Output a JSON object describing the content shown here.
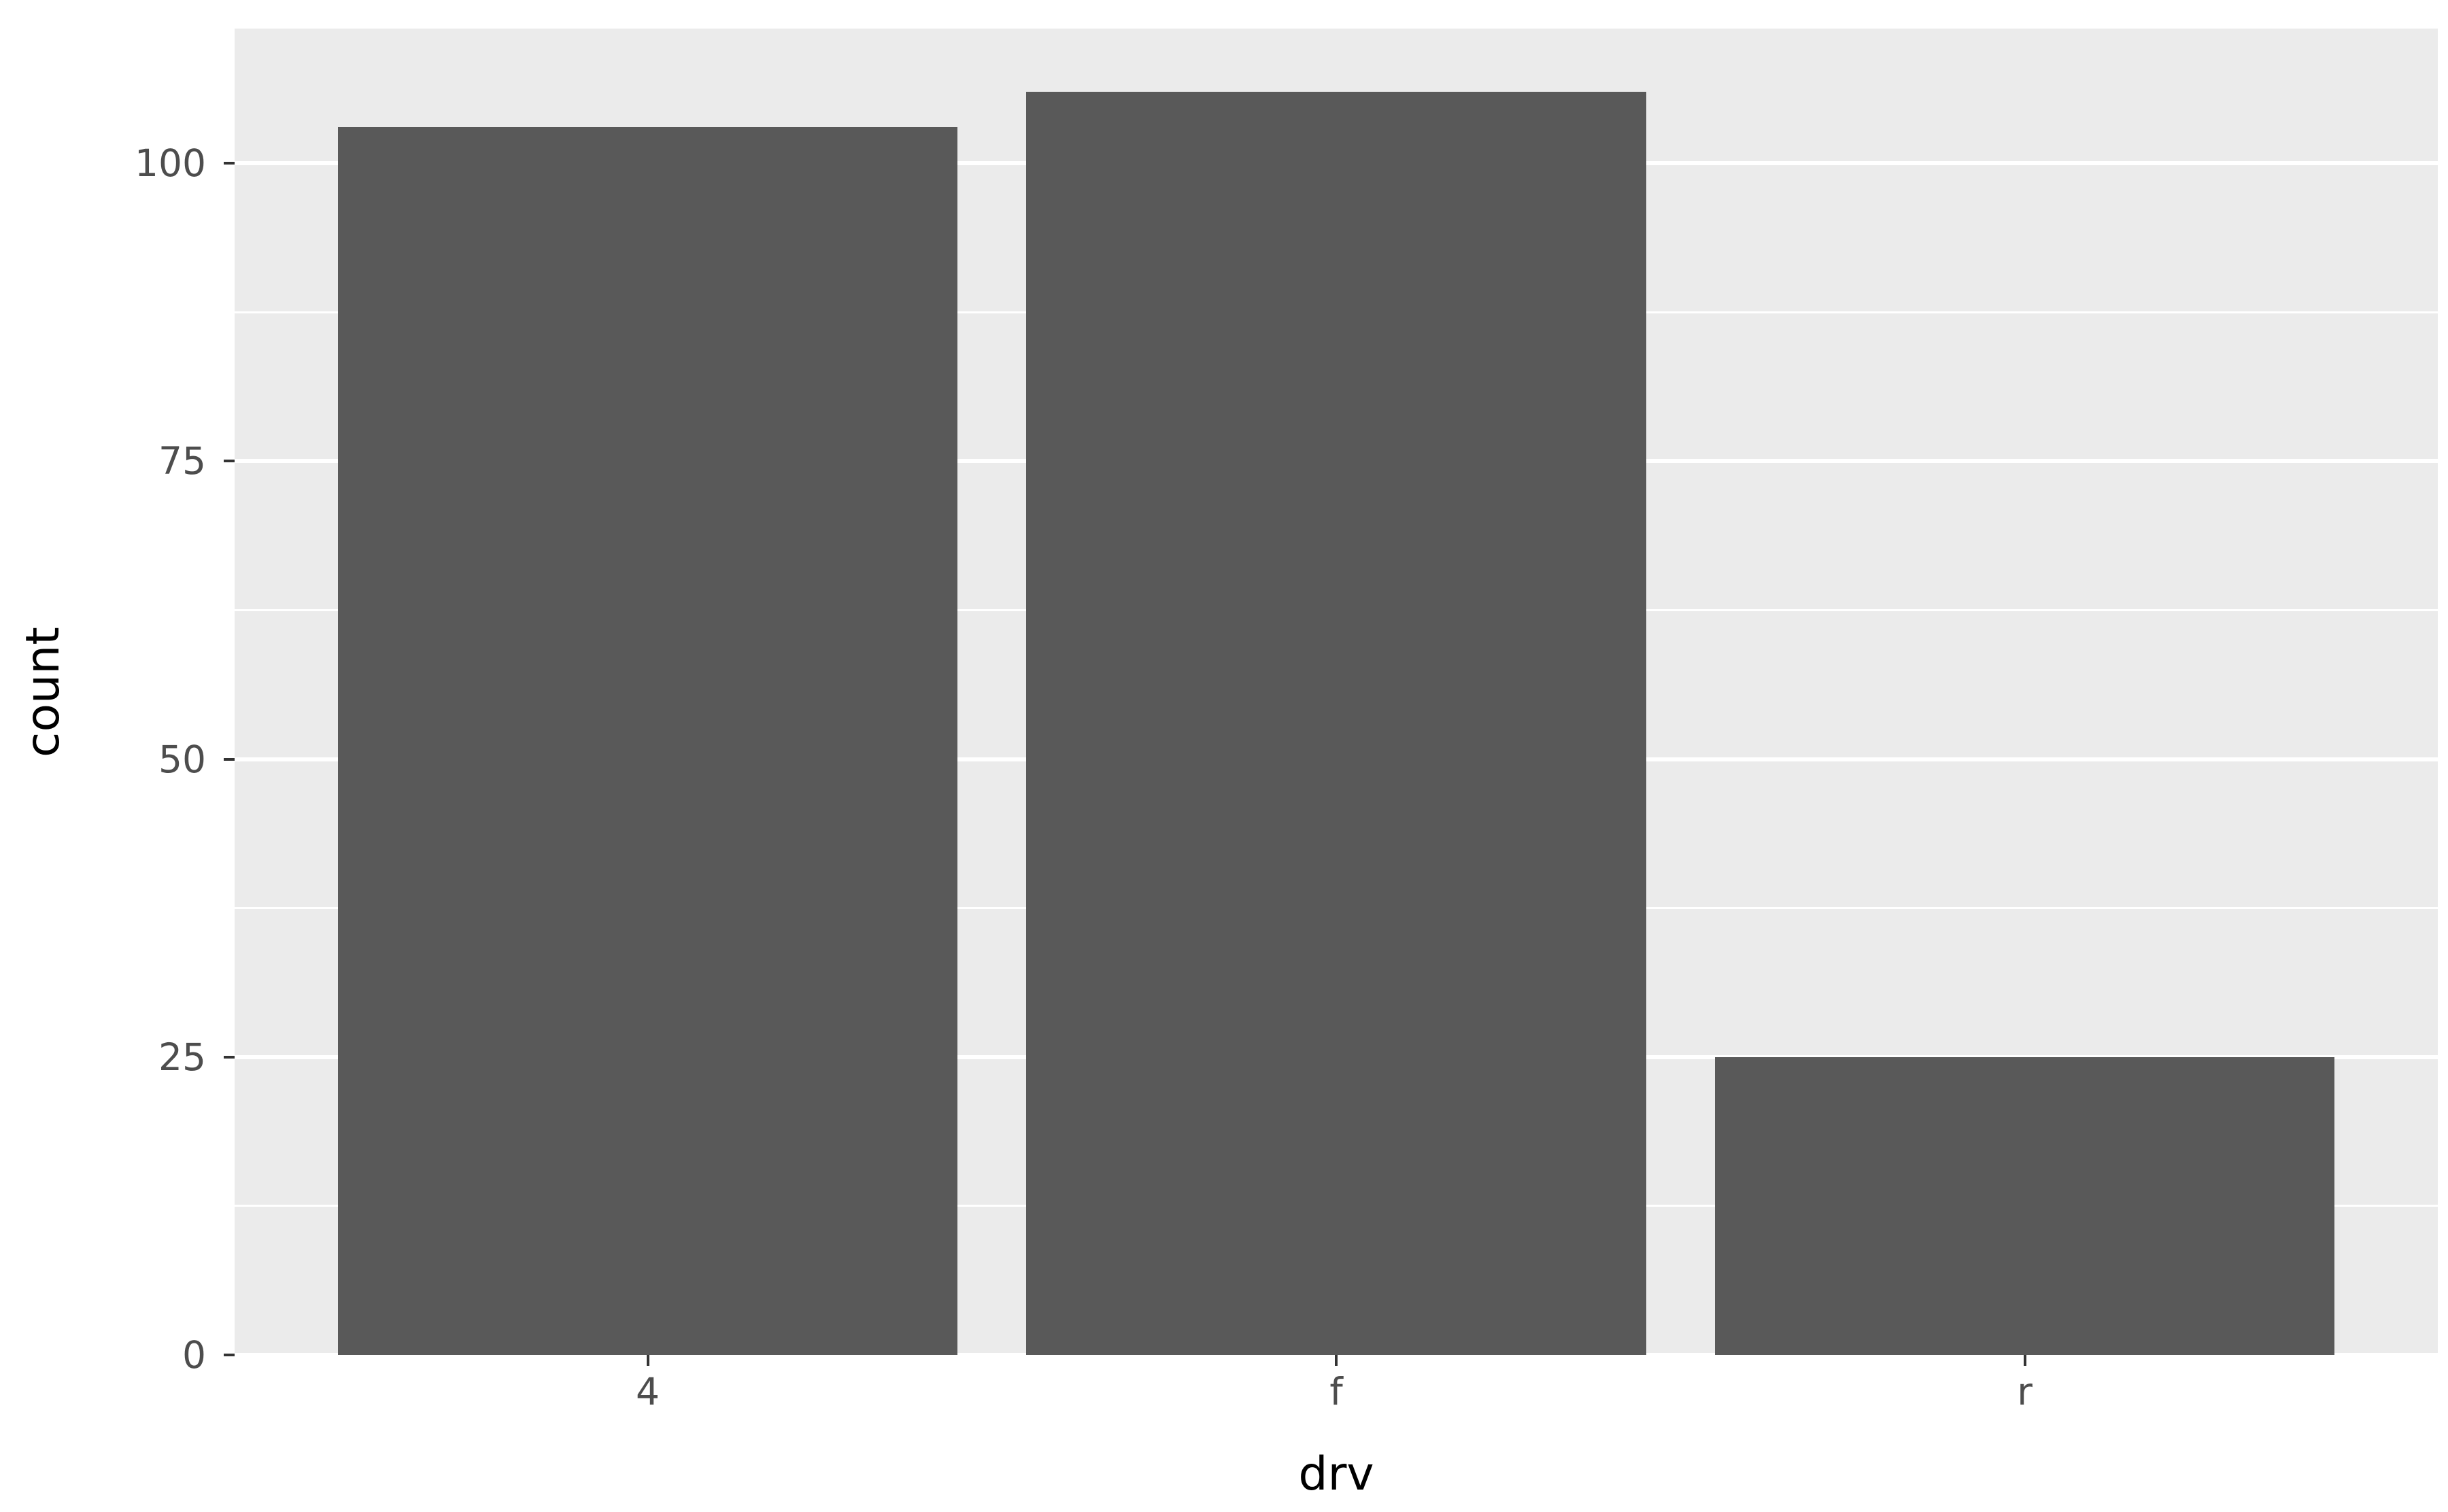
{
  "chart_data": {
    "type": "bar",
    "title": "",
    "xlabel": "drv",
    "ylabel": "count",
    "categories": [
      "4",
      "f",
      "r"
    ],
    "values": [
      103,
      106,
      25
    ],
    "y_ticks": [
      0,
      25,
      50,
      75,
      100
    ],
    "y_minor_ticks": [
      12.5,
      37.5,
      62.5,
      87.5
    ],
    "ylim": [
      0,
      111.3
    ],
    "grid": "major-and-minor-horizontal",
    "legend_position": "none",
    "style": "ggplot2-grey-theme",
    "colors": {
      "bar_fill": "#595959",
      "panel_background": "#EBEBEB",
      "grid_major": "#FFFFFF",
      "grid_minor": "#FFFFFF",
      "axis_text": "#4D4D4D",
      "axis_title": "#000000",
      "tick_mark": "#333333",
      "figure_background": "#FFFFFF"
    }
  }
}
